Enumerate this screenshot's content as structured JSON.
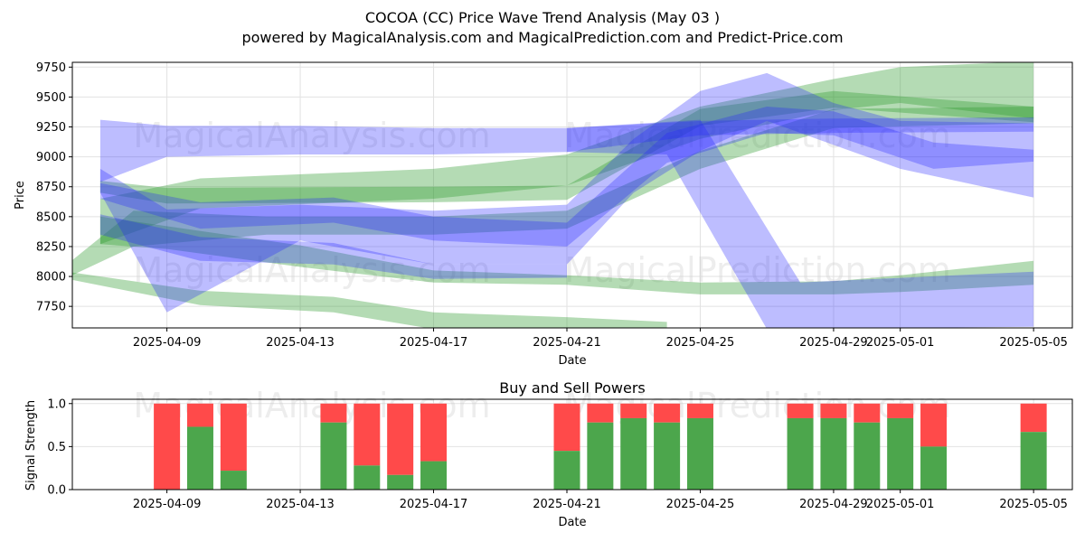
{
  "title": "COCOA (CC) Price Wave Trend Analysis (May 03 )",
  "subtitle": "powered by MagicalAnalysis.com and MagicalPrediction.com and Predict-Price.com",
  "watermarks": [
    "MagicalAnalysis.com",
    "MagicalPrediction.com"
  ],
  "colors": {
    "green_band": "#2e9a2e",
    "blue_band": "#2323ff",
    "buy": "#4ca64c",
    "sell": "#ff4a4a",
    "grid": "#e2e2e2"
  },
  "chart_data": [
    {
      "type": "area",
      "title": "",
      "xlabel": "Date",
      "ylabel": "Price",
      "ylim": [
        7570,
        9790
      ],
      "xlim": [
        "2025-04-06",
        "2025-05-06"
      ],
      "x_ticks": [
        "2025-04-09",
        "2025-04-13",
        "2025-04-17",
        "2025-04-21",
        "2025-04-25",
        "2025-04-29",
        "2025-05-01",
        "2025-05-05"
      ],
      "y_ticks": [
        7750,
        8000,
        8250,
        8500,
        8750,
        9000,
        9250,
        9500,
        9750
      ],
      "grid": true,
      "series": [
        {
          "color": "green",
          "upper": [
            [
              "2025-04-07",
              8800
            ],
            [
              "2025-04-09",
              8740
            ],
            [
              "2025-04-17",
              8750
            ],
            [
              "2025-04-21",
              8760
            ],
            [
              "2025-04-25",
              9400
            ],
            [
              "2025-04-29",
              9550
            ],
            [
              "2025-05-05",
              9420
            ]
          ],
          "lower": [
            [
              "2025-04-07",
              8700
            ],
            [
              "2025-04-09",
              8610
            ],
            [
              "2025-04-17",
              8620
            ],
            [
              "2025-04-21",
              8640
            ],
            [
              "2025-04-25",
              9260
            ],
            [
              "2025-04-29",
              9410
            ],
            [
              "2025-05-05",
              9290
            ]
          ]
        },
        {
          "color": "green",
          "upper": [
            [
              "2025-04-07",
              8650
            ],
            [
              "2025-04-10",
              8820
            ],
            [
              "2025-04-17",
              8900
            ],
            [
              "2025-04-21",
              9020
            ],
            [
              "2025-04-25",
              9420
            ],
            [
              "2025-04-29",
              9650
            ],
            [
              "2025-05-01",
              9750
            ],
            [
              "2025-05-05",
              9800
            ]
          ],
          "lower": [
            [
              "2025-04-07",
              8270
            ],
            [
              "2025-04-10",
              8570
            ],
            [
              "2025-04-17",
              8650
            ],
            [
              "2025-04-21",
              8760
            ],
            [
              "2025-04-25",
              9150
            ],
            [
              "2025-04-29",
              9390
            ],
            [
              "2025-05-01",
              9450
            ],
            [
              "2025-05-05",
              9320
            ]
          ]
        },
        {
          "color": "green",
          "upper": [
            [
              "2025-04-06",
              8100
            ],
            [
              "2025-04-08",
              8550
            ],
            [
              "2025-04-12",
              8500
            ],
            [
              "2025-04-17",
              8500
            ],
            [
              "2025-04-21",
              8550
            ],
            [
              "2025-04-25",
              9050
            ],
            [
              "2025-04-29",
              9400
            ],
            [
              "2025-05-05",
              9420
            ]
          ],
          "lower": [
            [
              "2025-04-06",
              7990
            ],
            [
              "2025-04-08",
              8250
            ],
            [
              "2025-04-12",
              8350
            ],
            [
              "2025-04-17",
              8350
            ],
            [
              "2025-04-21",
              8400
            ],
            [
              "2025-04-25",
              8900
            ],
            [
              "2025-04-29",
              9240
            ],
            [
              "2025-05-05",
              9280
            ]
          ]
        },
        {
          "color": "green",
          "upper": [
            [
              "2025-04-06",
              8040
            ],
            [
              "2025-04-10",
              7880
            ],
            [
              "2025-04-14",
              7830
            ],
            [
              "2025-04-17",
              7700
            ],
            [
              "2025-04-21",
              7660
            ],
            [
              "2025-04-24",
              7620
            ]
          ],
          "lower": [
            [
              "2025-04-06",
              7980
            ],
            [
              "2025-04-10",
              7760
            ],
            [
              "2025-04-14",
              7700
            ],
            [
              "2025-04-17",
              7560
            ],
            [
              "2025-04-21",
              7540
            ],
            [
              "2025-04-24",
              7520
            ]
          ]
        },
        {
          "color": "green",
          "upper": [
            [
              "2025-04-07",
              8500
            ],
            [
              "2025-04-09",
              8420
            ],
            [
              "2025-04-13",
              8260
            ],
            [
              "2025-04-17",
              8050
            ],
            [
              "2025-04-21",
              8010
            ],
            [
              "2025-04-25",
              7950
            ],
            [
              "2025-04-29",
              7960
            ],
            [
              "2025-05-01",
              8010
            ],
            [
              "2025-05-05",
              8130
            ]
          ],
          "lower": [
            [
              "2025-04-07",
              8270
            ],
            [
              "2025-04-09",
              8230
            ],
            [
              "2025-04-13",
              8080
            ],
            [
              "2025-04-17",
              7950
            ],
            [
              "2025-04-21",
              7930
            ],
            [
              "2025-04-25",
              7850
            ],
            [
              "2025-04-29",
              7850
            ],
            [
              "2025-05-01",
              7870
            ],
            [
              "2025-05-05",
              7930
            ]
          ]
        },
        {
          "color": "blue",
          "upper": [
            [
              "2025-04-07",
              9310
            ],
            [
              "2025-04-09",
              9260
            ],
            [
              "2025-04-13",
              9260
            ],
            [
              "2025-04-17",
              9240
            ],
            [
              "2025-04-21",
              9240
            ],
            [
              "2025-04-25",
              9300
            ],
            [
              "2025-04-29",
              9320
            ],
            [
              "2025-05-05",
              9330
            ]
          ],
          "lower": [
            [
              "2025-04-07",
              8790
            ],
            [
              "2025-04-09",
              9000
            ],
            [
              "2025-04-13",
              9020
            ],
            [
              "2025-04-17",
              9020
            ],
            [
              "2025-04-21",
              9040
            ],
            [
              "2025-04-25",
              9180
            ],
            [
              "2025-04-29",
              9200
            ],
            [
              "2025-05-05",
              9210
            ]
          ]
        },
        {
          "color": "blue",
          "upper": [
            [
              "2025-04-21",
              9240
            ],
            [
              "2025-04-25",
              9310
            ],
            [
              "2025-04-28",
              7950
            ],
            [
              "2025-05-05",
              8040
            ]
          ],
          "lower": [
            [
              "2025-04-21",
              9040
            ],
            [
              "2025-04-24",
              9020
            ],
            [
              "2025-04-27",
              7560
            ],
            [
              "2025-05-05",
              7580
            ]
          ]
        },
        {
          "color": "blue",
          "upper": [
            [
              "2025-04-07",
              8900
            ],
            [
              "2025-04-09",
              8560
            ],
            [
              "2025-04-13",
              8600
            ],
            [
              "2025-04-17",
              8550
            ],
            [
              "2025-04-21",
              8600
            ],
            [
              "2025-04-23",
              9150
            ],
            [
              "2025-04-25",
              9550
            ],
            [
              "2025-04-27",
              9700
            ],
            [
              "2025-04-29",
              9450
            ],
            [
              "2025-05-01",
              9300
            ],
            [
              "2025-05-05",
              9280
            ]
          ],
          "lower": [
            [
              "2025-04-07",
              8700
            ],
            [
              "2025-04-09",
              7700
            ],
            [
              "2025-04-13",
              8300
            ],
            [
              "2025-04-17",
              8100
            ],
            [
              "2025-04-21",
              8100
            ],
            [
              "2025-04-23",
              8700
            ],
            [
              "2025-04-25",
              9050
            ],
            [
              "2025-04-27",
              9300
            ],
            [
              "2025-04-29",
              9100
            ],
            [
              "2025-05-01",
              8900
            ],
            [
              "2025-05-05",
              8660
            ]
          ]
        },
        {
          "color": "blue",
          "upper": [
            [
              "2025-04-07",
              8780
            ],
            [
              "2025-04-10",
              8620
            ],
            [
              "2025-04-14",
              8660
            ],
            [
              "2025-04-17",
              8500
            ],
            [
              "2025-04-21",
              8450
            ],
            [
              "2025-04-24",
              9200
            ],
            [
              "2025-04-27",
              9420
            ],
            [
              "2025-04-29",
              9380
            ],
            [
              "2025-05-02",
              9120
            ],
            [
              "2025-05-05",
              9060
            ]
          ],
          "lower": [
            [
              "2025-04-07",
              8650
            ],
            [
              "2025-04-10",
              8400
            ],
            [
              "2025-04-14",
              8450
            ],
            [
              "2025-04-17",
              8300
            ],
            [
              "2025-04-21",
              8250
            ],
            [
              "2025-04-24",
              8950
            ],
            [
              "2025-04-27",
              9200
            ],
            [
              "2025-04-29",
              9180
            ],
            [
              "2025-05-02",
              8900
            ],
            [
              "2025-05-05",
              8960
            ]
          ]
        },
        {
          "color": "blue",
          "upper": [
            [
              "2025-04-07",
              8520
            ],
            [
              "2025-04-10",
              8330
            ],
            [
              "2025-04-14",
              8280
            ],
            [
              "2025-04-17",
              8100
            ],
            [
              "2025-04-21",
              8100
            ]
          ],
          "lower": [
            [
              "2025-04-07",
              8350
            ],
            [
              "2025-04-10",
              8130
            ],
            [
              "2025-04-14",
              8100
            ],
            [
              "2025-04-17",
              7980
            ],
            [
              "2025-04-21",
              7990
            ]
          ]
        }
      ]
    },
    {
      "type": "bar",
      "title": "Buy and Sell Powers",
      "xlabel": "Date",
      "ylabel": "Signal Strength",
      "ylim": [
        0,
        1.05
      ],
      "y_ticks": [
        0.0,
        0.5,
        1.0
      ],
      "x_ticks": [
        "2025-04-09",
        "2025-04-13",
        "2025-04-17",
        "2025-04-21",
        "2025-04-25",
        "2025-04-29",
        "2025-05-01",
        "2025-05-05"
      ],
      "categories": [
        "2025-04-09",
        "2025-04-10",
        "2025-04-11",
        "2025-04-14",
        "2025-04-15",
        "2025-04-16",
        "2025-04-17",
        "2025-04-21",
        "2025-04-22",
        "2025-04-23",
        "2025-04-24",
        "2025-04-25",
        "2025-04-28",
        "2025-04-29",
        "2025-04-30",
        "2025-05-01",
        "2025-05-02",
        "2025-05-05"
      ],
      "series": [
        {
          "values": [
            0.0,
            0.73,
            0.22,
            0.78,
            0.28,
            0.17,
            0.33,
            0.45,
            0.78,
            0.83,
            0.78,
            0.83,
            0.83,
            0.83,
            0.78,
            0.83,
            0.5,
            0.67
          ]
        },
        {
          "values": [
            1.0,
            0.27,
            0.78,
            0.22,
            0.72,
            0.83,
            0.67,
            0.55,
            0.22,
            0.17,
            0.22,
            0.17,
            0.17,
            0.17,
            0.22,
            0.17,
            0.5,
            0.33
          ]
        }
      ]
    }
  ]
}
